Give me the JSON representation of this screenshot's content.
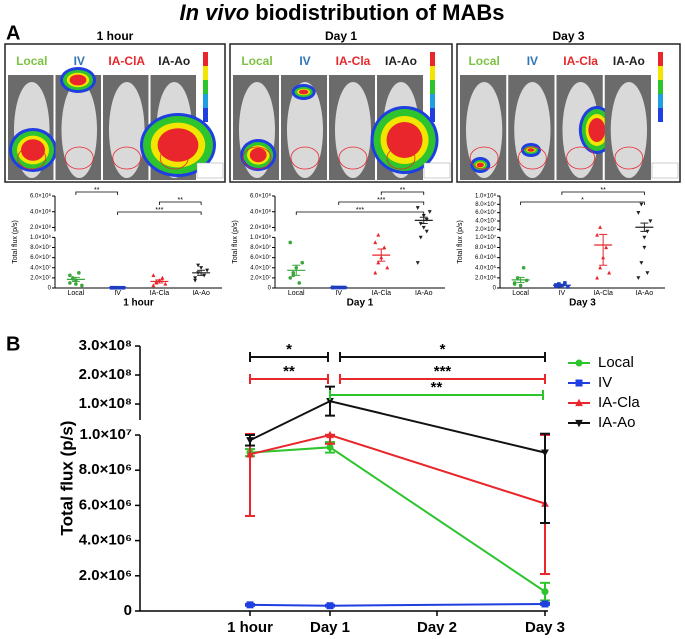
{
  "title": {
    "italic": "In vivo",
    "rest": "biodistribution of MABs"
  },
  "panel_a": {
    "label": "A",
    "group_colors": [
      "#7dc242",
      "#2e75b6",
      "#e8262b",
      "#222222"
    ],
    "images": [
      {
        "time": "1 hour",
        "groups": [
          "Local",
          "IV",
          "IA-ClA",
          "IA-Ao"
        ]
      },
      {
        "time": "Day 1",
        "groups": [
          "Local",
          "IV",
          "IA-Cla",
          "IA-Ao"
        ]
      },
      {
        "time": "Day 3",
        "groups": [
          "Local",
          "IV",
          "IA-Cla",
          "IA-Ao"
        ]
      }
    ]
  },
  "panel_b": {
    "label": "B"
  },
  "chart_data": [
    {
      "type": "dot",
      "xlabel": "1 hour",
      "ylabel": "Total flux (p/s)",
      "categories": [
        "Local",
        "IV",
        "IA-Cla",
        "IA-Ao"
      ],
      "y_segments": [
        [
          0,
          100000000.0
        ],
        [
          150000000.0,
          600000000.0
        ]
      ],
      "yticks": [
        {
          "value": 0,
          "label": "0"
        },
        {
          "value": 20000000.0,
          "label": "2.0×10⁷"
        },
        {
          "value": 40000000.0,
          "label": "4.0×10⁷"
        },
        {
          "value": 60000000.0,
          "label": "6.0×10⁷"
        },
        {
          "value": 80000000.0,
          "label": "8.0×10⁷"
        },
        {
          "value": 100000000.0,
          "label": "1.0×10⁸"
        },
        {
          "value": 200000000.0,
          "label": "2.0×10⁸"
        },
        {
          "value": 400000000.0,
          "label": "4.0×10⁸"
        },
        {
          "value": 600000000.0,
          "label": "6.0×10⁸"
        }
      ],
      "groups": [
        {
          "color": "#3aa53a",
          "marker": "circle",
          "points": [
            10000000.0,
            20000000.0,
            15000000.0,
            30000000.0,
            5000000.0,
            25000000.0,
            18000000.0,
            8000000.0
          ],
          "mean": 17000000.0,
          "error": 4000000.0
        },
        {
          "color": "#1f3fbf",
          "marker": "square",
          "points": [
            500000.0,
            500000.0,
            500000.0,
            500000.0,
            500000.0,
            500000.0,
            500000.0
          ],
          "mean": 500000.0,
          "error": 100000.0
        },
        {
          "color": "#e8262b",
          "marker": "triangle",
          "points": [
            5000000.0,
            10000000.0,
            15000000.0,
            20000000.0,
            8000000.0,
            25000000.0,
            12000000.0
          ],
          "mean": 13000000.0,
          "error": 3000000.0
        },
        {
          "color": "#222222",
          "marker": "triangle-down",
          "points": [
            20000000.0,
            30000000.0,
            40000000.0,
            25000000.0,
            35000000.0,
            15000000.0,
            45000000.0
          ],
          "mean": 30000000.0,
          "error": 5000000.0
        }
      ],
      "brackets": [
        {
          "from": "Local",
          "to": "IV",
          "label": "**"
        },
        {
          "from": "IA-Cla",
          "to": "IA-Ao",
          "label": "**"
        },
        {
          "from": "IV",
          "to": "IA-Ao",
          "label": "***"
        }
      ]
    },
    {
      "type": "dot",
      "xlabel": "Day 1",
      "ylabel": "Total flux (p/s)",
      "categories": [
        "Local",
        "IV",
        "IA-Cla",
        "IA-Ao"
      ],
      "y_segments": [
        [
          0,
          100000000.0
        ],
        [
          150000000.0,
          600000000.0
        ]
      ],
      "yticks": [
        {
          "value": 0,
          "label": "0"
        },
        {
          "value": 20000000.0,
          "label": "2.0×10⁷"
        },
        {
          "value": 40000000.0,
          "label": "4.0×10⁷"
        },
        {
          "value": 60000000.0,
          "label": "6.0×10⁷"
        },
        {
          "value": 80000000.0,
          "label": "8.0×10⁷"
        },
        {
          "value": 100000000.0,
          "label": "1.0×10⁸"
        },
        {
          "value": 200000000.0,
          "label": "2.0×10⁸"
        },
        {
          "value": 400000000.0,
          "label": "4.0×10⁸"
        },
        {
          "value": 600000000.0,
          "label": "6.0×10⁸"
        }
      ],
      "groups": [
        {
          "color": "#3aa53a",
          "marker": "circle",
          "points": [
            20000000.0,
            30000000.0,
            40000000.0,
            10000000.0,
            50000000.0,
            90000000.0,
            25000000.0
          ],
          "mean": 35000000.0,
          "error": 10000000.0
        },
        {
          "color": "#1f3fbf",
          "marker": "square",
          "points": [
            1000000.0,
            1000000.0,
            1000000.0,
            1000000.0,
            1000000.0,
            1000000.0
          ],
          "mean": 1000000.0,
          "error": 200000.0
        },
        {
          "color": "#e8262b",
          "marker": "triangle",
          "points": [
            30000000.0,
            50000000.0,
            60000000.0,
            80000000.0,
            40000000.0,
            90000000.0,
            120000000.0
          ],
          "mean": 65000000.0,
          "error": 12000000.0
        },
        {
          "color": "#222222",
          "marker": "triangle-down",
          "points": [
            50000000.0,
            100000000.0,
            200000000.0,
            300000000.0,
            400000000.0,
            450000000.0,
            250000000.0,
            350000000.0,
            150000000.0
          ],
          "mean": 290000000.0,
          "error": 40000000.0
        }
      ],
      "brackets": [
        {
          "from": "IA-Cla",
          "to": "IA-Ao",
          "label": "**"
        },
        {
          "from": "IV",
          "to": "IA-Ao",
          "label": "***"
        },
        {
          "from": "Local",
          "to": "IA-Ao",
          "label": "***"
        }
      ]
    },
    {
      "type": "dot",
      "xlabel": "Day 3",
      "ylabel": "Total flux (p/s)",
      "categories": [
        "Local",
        "IV",
        "IA-Cla",
        "IA-Ao"
      ],
      "y_segments": [
        [
          0,
          10000000.0
        ],
        [
          15000000.0,
          100000000.0
        ]
      ],
      "yticks": [
        {
          "value": 0,
          "label": "0"
        },
        {
          "value": 2000000.0,
          "label": "2.0×10⁶"
        },
        {
          "value": 4000000.0,
          "label": "4.0×10⁶"
        },
        {
          "value": 6000000.0,
          "label": "6.0×10⁶"
        },
        {
          "value": 8000000.0,
          "label": "8.0×10⁶"
        },
        {
          "value": 10000000.0,
          "label": "1.0×10⁷"
        },
        {
          "value": 20000000.0,
          "label": "2.0×10⁷"
        },
        {
          "value": 40000000.0,
          "label": "4.0×10⁷"
        },
        {
          "value": 60000000.0,
          "label": "6.0×10⁷"
        },
        {
          "value": 80000000.0,
          "label": "8.0×10⁷"
        },
        {
          "value": 100000000.0,
          "label": "1.0×10⁸"
        }
      ],
      "groups": [
        {
          "color": "#3aa53a",
          "marker": "circle",
          "points": [
            1000000.0,
            2000000.0,
            500000.0,
            4000000.0,
            1500000.0,
            800000.0
          ],
          "mean": 1600000.0,
          "error": 500000.0
        },
        {
          "color": "#1f3fbf",
          "marker": "square",
          "points": [
            300000.0,
            800000.0,
            500000.0,
            1000000.0,
            200000.0,
            600000.0,
            400000.0
          ],
          "mean": 550000.0,
          "error": 100000.0
        },
        {
          "color": "#e8262b",
          "marker": "triangle",
          "points": [
            2000000.0,
            4000000.0,
            6000000.0,
            8000000.0,
            3000000.0,
            12000000.0,
            25000000.0
          ],
          "mean": 8500000.0,
          "error": 4000000.0
        },
        {
          "color": "#222222",
          "marker": "triangle-down",
          "points": [
            2000000.0,
            5000000.0,
            8000000.0,
            15000000.0,
            40000000.0,
            60000000.0,
            80000000.0,
            10000000.0,
            3000000.0
          ],
          "mean": 25000000.0,
          "error": 10000000.0
        }
      ],
      "brackets": [
        {
          "from": "IV",
          "to": "IA-Ao",
          "label": "**"
        },
        {
          "from": "Local",
          "to": "IA-Ao",
          "label": "*"
        }
      ]
    },
    {
      "type": "line",
      "ylabel": "Total flux (p/s)",
      "categories": [
        "1 hour",
        "Day 1",
        "Day 2",
        "Day 3"
      ],
      "y_segments": [
        [
          0,
          10000000.0
        ],
        [
          45000000.0,
          300000000.0
        ]
      ],
      "yticks": [
        {
          "value": 0,
          "label": "0"
        },
        {
          "value": 2000000.0,
          "label": "2.0×10⁶"
        },
        {
          "value": 4000000.0,
          "label": "4.0×10⁶"
        },
        {
          "value": 6000000.0,
          "label": "6.0×10⁶"
        },
        {
          "value": 8000000.0,
          "label": "8.0×10⁶"
        },
        {
          "value": 10000000.0,
          "label": "1.0×10⁷"
        },
        {
          "value": 100000000.0,
          "label": "1.0×10⁸"
        },
        {
          "value": 200000000.0,
          "label": "2.0×10⁸"
        },
        {
          "value": 300000000.0,
          "label": "3.0×10⁸"
        }
      ],
      "legend": "right",
      "series": [
        {
          "name": "Local",
          "color": "#2ec42e",
          "marker": "circle",
          "x": [
            "1 hour",
            "Day 1",
            "Day 3"
          ],
          "values": [
            9000000.0,
            9300000.0,
            1100000.0
          ],
          "errors": [
            200000.0,
            300000.0,
            500000.0
          ]
        },
        {
          "name": "IV",
          "color": "#1f3fe0",
          "marker": "square",
          "x": [
            "1 hour",
            "Day 1",
            "Day 3"
          ],
          "values": [
            350000.0,
            300000.0,
            400000.0
          ],
          "errors": [
            50000.0,
            50000.0,
            50000.0
          ]
        },
        {
          "name": "IA-Cla",
          "color": "#e8262b",
          "marker": "triangle",
          "x": [
            "1 hour",
            "Day 1",
            "Day 3"
          ],
          "values": [
            8900000.0,
            10000000.0,
            6100000.0
          ],
          "errors": [
            3500000.0,
            500000.0,
            4000000.0
          ]
        },
        {
          "name": "IA-Ao",
          "color": "#111111",
          "marker": "triangle-down",
          "x": [
            "1 hour",
            "Day 1",
            "Day 3"
          ],
          "values": [
            9700000.0,
            110000000.0,
            9000000.0
          ],
          "errors": [
            300000.0,
            50000000.0,
            4000000.0
          ]
        }
      ],
      "brackets": [
        {
          "from": "1 hour",
          "to": "Day 1",
          "label": "*",
          "color": "#111111"
        },
        {
          "from": "Day 1",
          "to": "Day 3",
          "label": "*",
          "color": "#111111"
        },
        {
          "from": "1 hour",
          "to": "Day 1",
          "label": "**",
          "color": "#e8262b"
        },
        {
          "from": "Day 1",
          "to": "Day 3",
          "label": "***",
          "color": "#e8262b"
        },
        {
          "from": "Day 1",
          "to": "Day 3",
          "label": "**",
          "color": "#2ec42e"
        }
      ]
    }
  ]
}
